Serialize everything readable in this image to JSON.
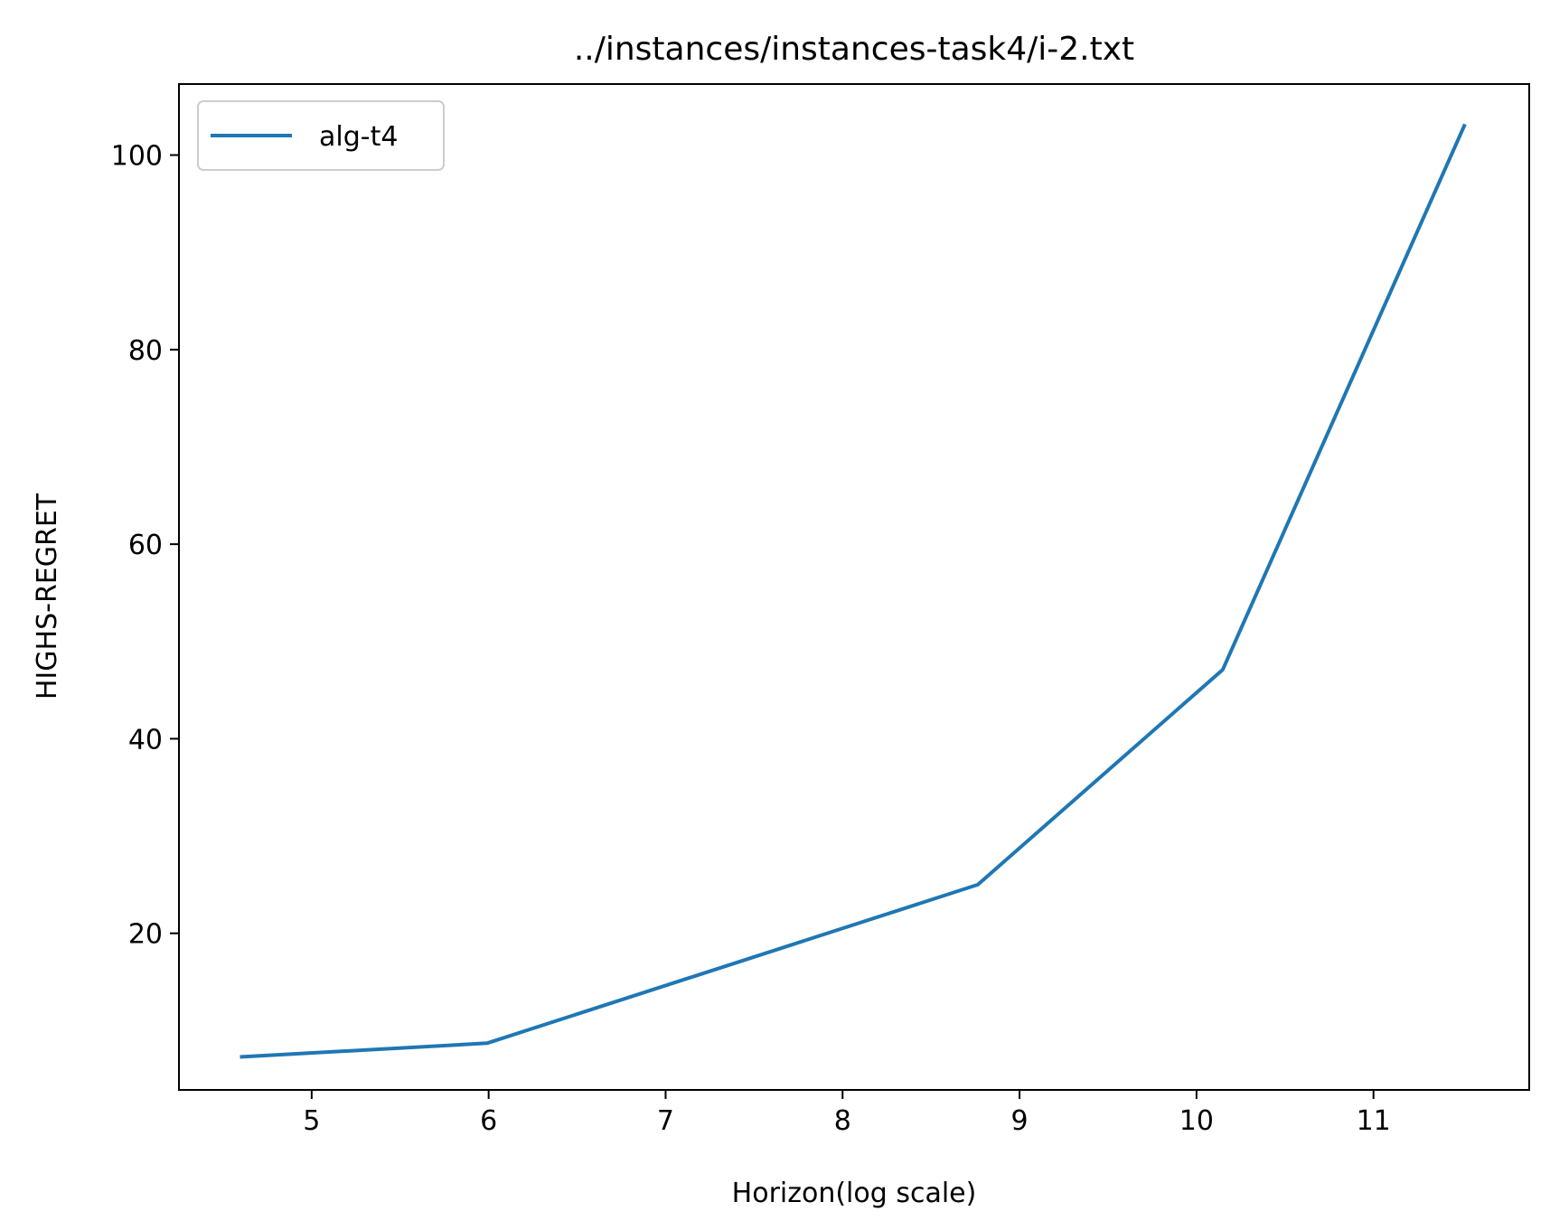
{
  "chart_data": {
    "type": "line",
    "title": "../instances/instances-task4/i-2.txt",
    "xlabel": "Horizon(log scale)",
    "ylabel": "HIGHS-REGRET",
    "xlim": [
      4.25,
      11.88
    ],
    "ylim": [
      3.9,
      107.3
    ],
    "xticks": [
      5,
      6,
      7,
      8,
      9,
      10,
      11
    ],
    "yticks": [
      20,
      40,
      60,
      80,
      100
    ],
    "grid": false,
    "legend_position": "upper left",
    "series": [
      {
        "name": "alg-t4",
        "color": "#1f77b4",
        "x": [
          4.605,
          5.991,
          8.764,
          10.148,
          11.513
        ],
        "y": [
          7.3,
          8.7,
          25.0,
          47.1,
          103.0
        ]
      }
    ]
  }
}
